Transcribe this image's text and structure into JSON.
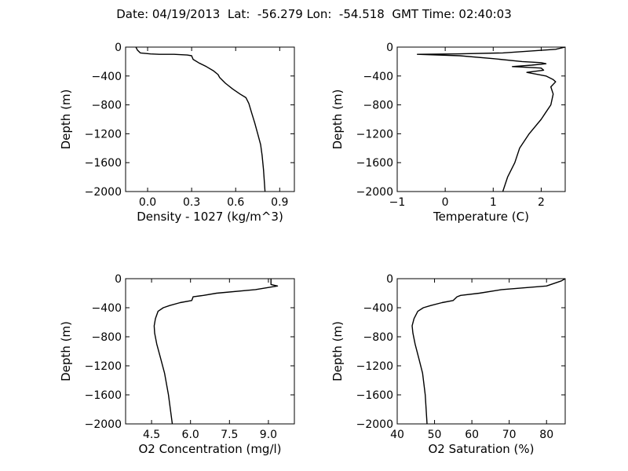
{
  "figure_title": "Date: 04/19/2013  Lat:  -56.279 Lon:  -54.518  GMT Time: 02:40:03",
  "chart_data": [
    {
      "type": "line",
      "name": "density",
      "xlabel": "Density - 1027 (kg/m^3)",
      "ylabel": "Depth (m)",
      "xlim": [
        -0.15,
        1.0
      ],
      "ylim": [
        -2000,
        0
      ],
      "xticks": [
        0.0,
        0.3,
        0.6,
        0.9
      ],
      "xtick_labels": [
        "0.0",
        "0.3",
        "0.6",
        "0.9"
      ],
      "yticks": [
        0,
        -400,
        -800,
        -1200,
        -1600,
        -2000
      ],
      "ytick_labels": [
        "0",
        "−400",
        "−800",
        "−1200",
        "−1600",
        "−2000"
      ],
      "grid": false,
      "series": [
        {
          "x": [
            -0.08,
            -0.07,
            -0.05,
            0.02,
            0.08,
            0.18,
            0.27,
            0.3,
            0.31,
            0.35,
            0.4,
            0.45,
            0.48,
            0.49,
            0.53,
            0.58,
            0.63,
            0.67,
            0.69,
            0.71,
            0.73,
            0.75,
            0.77,
            0.78,
            0.79,
            0.8
          ],
          "y": [
            0,
            -40,
            -80,
            -95,
            -100,
            -100,
            -110,
            -120,
            -170,
            -220,
            -270,
            -330,
            -380,
            -420,
            -500,
            -580,
            -650,
            -700,
            -780,
            -920,
            -1050,
            -1200,
            -1350,
            -1500,
            -1700,
            -2000
          ]
        }
      ]
    },
    {
      "type": "line",
      "name": "temperature",
      "xlabel": "Temperature (C)",
      "ylabel": "Depth (m)",
      "xlim": [
        -1,
        2.5
      ],
      "ylim": [
        -2000,
        0
      ],
      "xticks": [
        -1,
        0,
        1,
        2
      ],
      "xtick_labels": [
        "−1",
        "0",
        "1",
        "2"
      ],
      "yticks": [
        0,
        -400,
        -800,
        -1200,
        -1600,
        -2000
      ],
      "ytick_labels": [
        "0",
        "−400",
        "−800",
        "−1200",
        "−1600",
        "−2000"
      ],
      "grid": false,
      "series": [
        {
          "x": [
            2.5,
            2.3,
            1.2,
            0.2,
            -0.58,
            0.3,
            1.0,
            1.6,
            2.0,
            2.1,
            1.8,
            1.4,
            2.0,
            2.05,
            1.7,
            2.1,
            2.25,
            2.3,
            2.2,
            2.25,
            2.2,
            2.1,
            2.0,
            1.75,
            1.55,
            1.45,
            1.3,
            1.2
          ],
          "y": [
            0,
            -30,
            -80,
            -95,
            -100,
            -120,
            -160,
            -200,
            -215,
            -230,
            -250,
            -270,
            -290,
            -320,
            -350,
            -400,
            -450,
            -480,
            -550,
            -650,
            -800,
            -900,
            -1000,
            -1200,
            -1400,
            -1600,
            -1800,
            -2000
          ]
        }
      ]
    },
    {
      "type": "line",
      "name": "o2-concentration",
      "xlabel": "O2 Concentration (mg/l)",
      "ylabel": "Depth (m)",
      "xlim": [
        3.5,
        10.0
      ],
      "ylim": [
        -2000,
        0
      ],
      "xticks": [
        4.5,
        6.0,
        7.5,
        9.0
      ],
      "xtick_labels": [
        "4.5",
        "6.0",
        "7.5",
        "9.0"
      ],
      "yticks": [
        0,
        -400,
        -800,
        -1200,
        -1600,
        -2000
      ],
      "ytick_labels": [
        "0",
        "−400",
        "−800",
        "−1200",
        "−1600",
        "−2000"
      ],
      "grid": false,
      "series": [
        {
          "x": [
            9.1,
            9.1,
            9.35,
            8.5,
            7.0,
            6.5,
            6.1,
            6.05,
            5.6,
            5.2,
            4.95,
            4.75,
            4.65,
            4.6,
            4.62,
            4.7,
            4.85,
            5.0,
            5.15,
            5.3
          ],
          "y": [
            0,
            -80,
            -100,
            -150,
            -200,
            -230,
            -250,
            -300,
            -330,
            -370,
            -400,
            -450,
            -550,
            -650,
            -750,
            -900,
            -1100,
            -1300,
            -1600,
            -2000
          ]
        }
      ]
    },
    {
      "type": "line",
      "name": "o2-saturation",
      "xlabel": "O2 Saturation (%)",
      "ylabel": "Depth (m)",
      "xlim": [
        40,
        85
      ],
      "ylim": [
        -2000,
        0
      ],
      "xticks": [
        40,
        50,
        60,
        70,
        80
      ],
      "xtick_labels": [
        "40",
        "50",
        "60",
        "70",
        "80"
      ],
      "yticks": [
        0,
        -400,
        -800,
        -1200,
        -1600,
        -2000
      ],
      "ytick_labels": [
        "0",
        "−400",
        "−800",
        "−1200",
        "−1600",
        "−2000"
      ],
      "grid": false,
      "series": [
        {
          "x": [
            85,
            84,
            80,
            68,
            62,
            57,
            56,
            55,
            52,
            49,
            47,
            45.5,
            44.5,
            44,
            44.2,
            44.8,
            45.8,
            46.8,
            47.5,
            48
          ],
          "y": [
            0,
            -30,
            -100,
            -150,
            -200,
            -230,
            -250,
            -300,
            -330,
            -370,
            -400,
            -450,
            -550,
            -650,
            -750,
            -900,
            -1100,
            -1300,
            -1600,
            -2000
          ]
        }
      ]
    }
  ]
}
